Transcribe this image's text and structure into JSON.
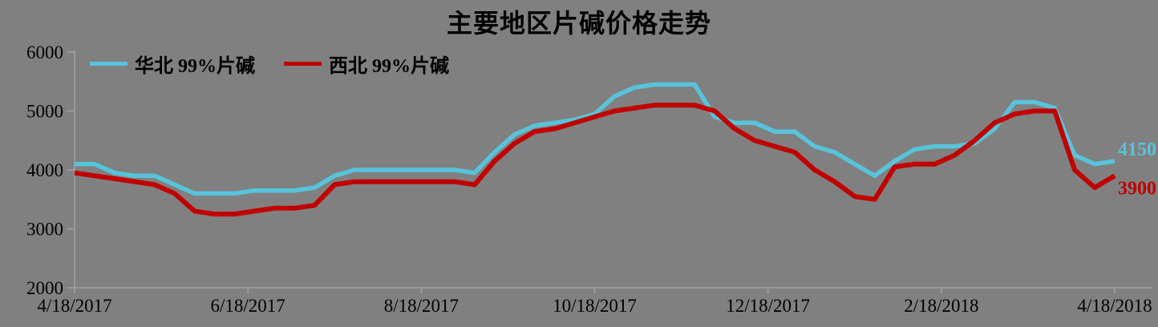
{
  "colors": {
    "background": "#808080",
    "axis": "#9f9f9f",
    "text": "#000000",
    "series_huabei": "#58c3da",
    "series_xibei": "#c00000"
  },
  "chart_data": {
    "type": "line",
    "title": "主要地区片碱价格走势",
    "grid": false,
    "legend_position": "top-left",
    "ylim": [
      2000,
      6000
    ],
    "yticks": [
      2000,
      3000,
      4000,
      5000,
      6000
    ],
    "xtick_labels": [
      "4/18/2017",
      "6/18/2017",
      "8/18/2017",
      "10/18/2017",
      "12/18/2017",
      "2/18/2018",
      "4/18/2018"
    ],
    "x": [
      "4/18/2017",
      "4/25/2017",
      "5/2/2017",
      "5/9/2017",
      "5/16/2017",
      "5/23/2017",
      "5/30/2017",
      "6/6/2017",
      "6/13/2017",
      "6/20/2017",
      "6/27/2017",
      "7/4/2017",
      "7/11/2017",
      "7/18/2017",
      "7/25/2017",
      "8/1/2017",
      "8/8/2017",
      "8/15/2017",
      "8/22/2017",
      "8/29/2017",
      "9/5/2017",
      "9/12/2017",
      "9/19/2017",
      "9/26/2017",
      "10/3/2017",
      "10/10/2017",
      "10/17/2017",
      "10/24/2017",
      "10/31/2017",
      "11/7/2017",
      "11/14/2017",
      "11/21/2017",
      "11/28/2017",
      "12/5/2017",
      "12/12/2017",
      "12/19/2017",
      "12/26/2017",
      "1/2/2018",
      "1/9/2018",
      "1/16/2018",
      "1/23/2018",
      "1/30/2018",
      "2/6/2018",
      "2/13/2018",
      "2/20/2018",
      "2/27/2018",
      "3/6/2018",
      "3/13/2018",
      "3/20/2018",
      "3/27/2018",
      "4/3/2018",
      "4/10/2018",
      "4/17/2018"
    ],
    "series": [
      {
        "name": "华北 99%片碱",
        "color": "#58c3da",
        "end_label": "4150",
        "values": [
          4100,
          4100,
          3950,
          3900,
          3900,
          3750,
          3600,
          3600,
          3600,
          3650,
          3650,
          3650,
          3700,
          3900,
          4000,
          4000,
          4000,
          4000,
          4000,
          4000,
          3950,
          4300,
          4600,
          4750,
          4800,
          4850,
          4950,
          5250,
          5400,
          5450,
          5450,
          5450,
          4900,
          4800,
          4800,
          4650,
          4650,
          4400,
          4300,
          4100,
          3900,
          4150,
          4350,
          4400,
          4400,
          4450,
          4700,
          5150,
          5150,
          5050,
          4250,
          4100,
          4150
        ]
      },
      {
        "name": "西北 99%片碱",
        "color": "#c00000",
        "end_label": "3900",
        "values": [
          3950,
          3900,
          3850,
          3800,
          3750,
          3600,
          3300,
          3250,
          3250,
          3300,
          3350,
          3350,
          3400,
          3750,
          3800,
          3800,
          3800,
          3800,
          3800,
          3800,
          3750,
          4150,
          4450,
          4650,
          4700,
          4800,
          4900,
          5000,
          5050,
          5100,
          5100,
          5100,
          5000,
          4700,
          4500,
          4400,
          4300,
          4000,
          3800,
          3550,
          3500,
          4050,
          4100,
          4100,
          4250,
          4500,
          4800,
          4950,
          5000,
          5000,
          4000,
          3700,
          3900
        ]
      }
    ]
  }
}
